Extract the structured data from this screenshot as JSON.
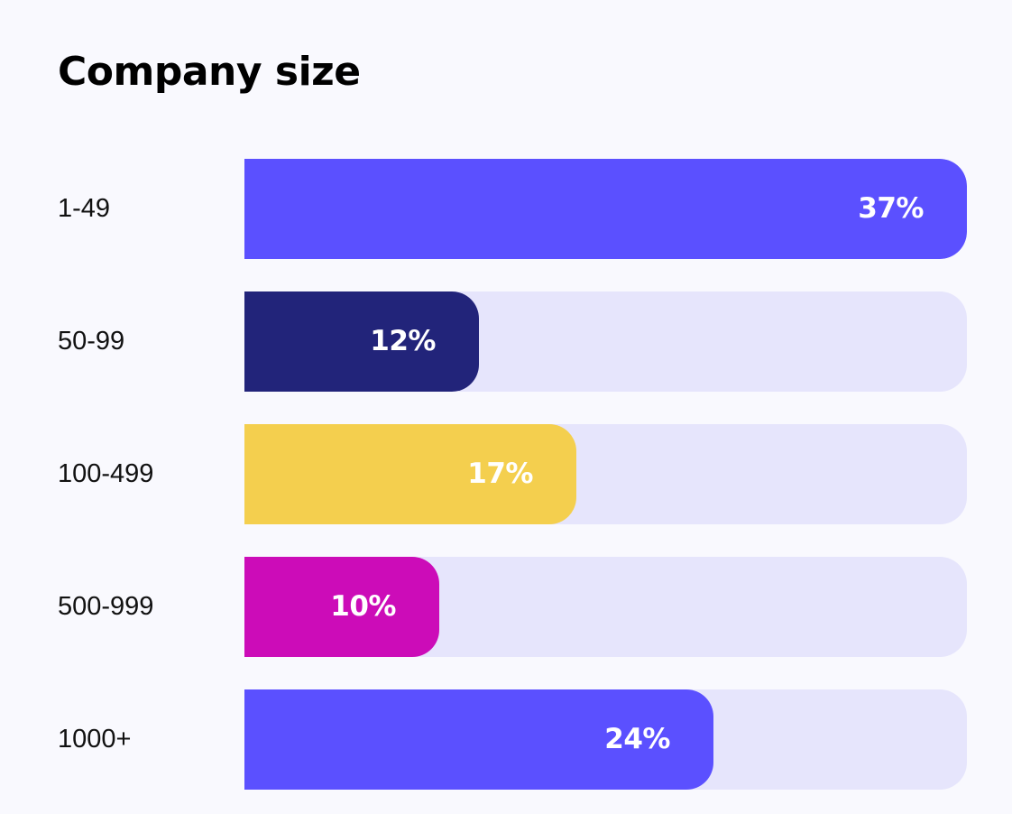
{
  "chart_data": {
    "type": "bar",
    "title": "Company size",
    "categories": [
      "1-49",
      "50-99",
      "100-499",
      "500-999",
      "1000+"
    ],
    "values": [
      37,
      12,
      17,
      10,
      24
    ],
    "value_labels": [
      "37%",
      "12%",
      "17%",
      "10%",
      "24%"
    ],
    "unit": "%",
    "xlim": [
      0,
      37
    ],
    "colors": [
      "#5b50ff",
      "#22247a",
      "#f4cf4e",
      "#cc0cb8",
      "#5b50ff"
    ],
    "track_color": "#e6e5fc",
    "orientation": "horizontal",
    "grid": false,
    "legend": "none"
  }
}
